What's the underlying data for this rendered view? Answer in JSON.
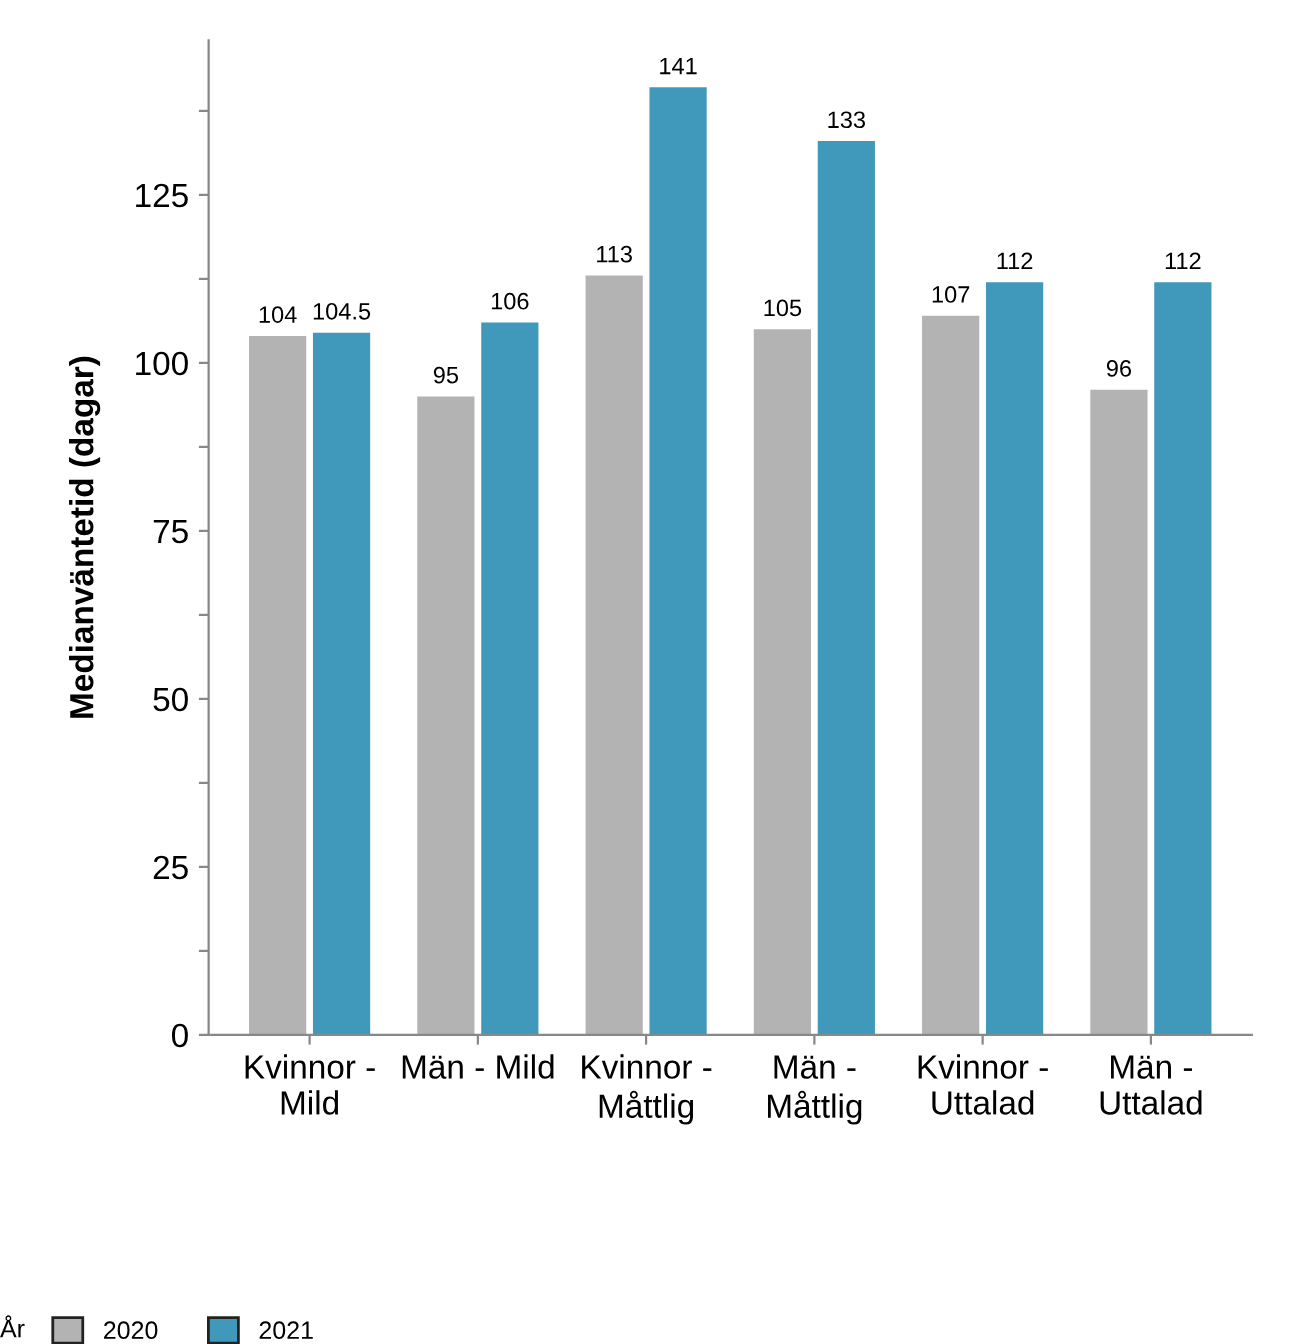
{
  "chart_data": {
    "type": "bar",
    "ylabel": "Medianväntetid (dagar)",
    "legend_title": "År",
    "categories": [
      "Kvinnor -\nMild",
      "Män - Mild",
      "Kvinnor -\nMåttlig",
      "Män -\nMåttlig",
      "Kvinnor -\nUttalad",
      "Män -\nUttalad"
    ],
    "series": [
      {
        "name": "2020",
        "color": "#b3b3b3",
        "values": [
          104,
          95,
          113,
          105,
          107,
          96
        ]
      },
      {
        "name": "2021",
        "color": "#4099bb",
        "values": [
          104.5,
          106,
          141,
          133,
          112,
          112
        ]
      }
    ],
    "ylim": [
      0,
      148
    ],
    "yticks": [
      0,
      {
        "value": 12.5,
        "label": null
      },
      25,
      {
        "value": 37.5,
        "label": null
      },
      50,
      {
        "value": 62.5,
        "label": null
      },
      75,
      {
        "value": 87.5,
        "label": null
      },
      100,
      {
        "value": 112.5,
        "label": null
      },
      125,
      {
        "value": 137.5,
        "label": null
      }
    ],
    "data_labels": true,
    "grid": false,
    "legend": "bottom"
  }
}
